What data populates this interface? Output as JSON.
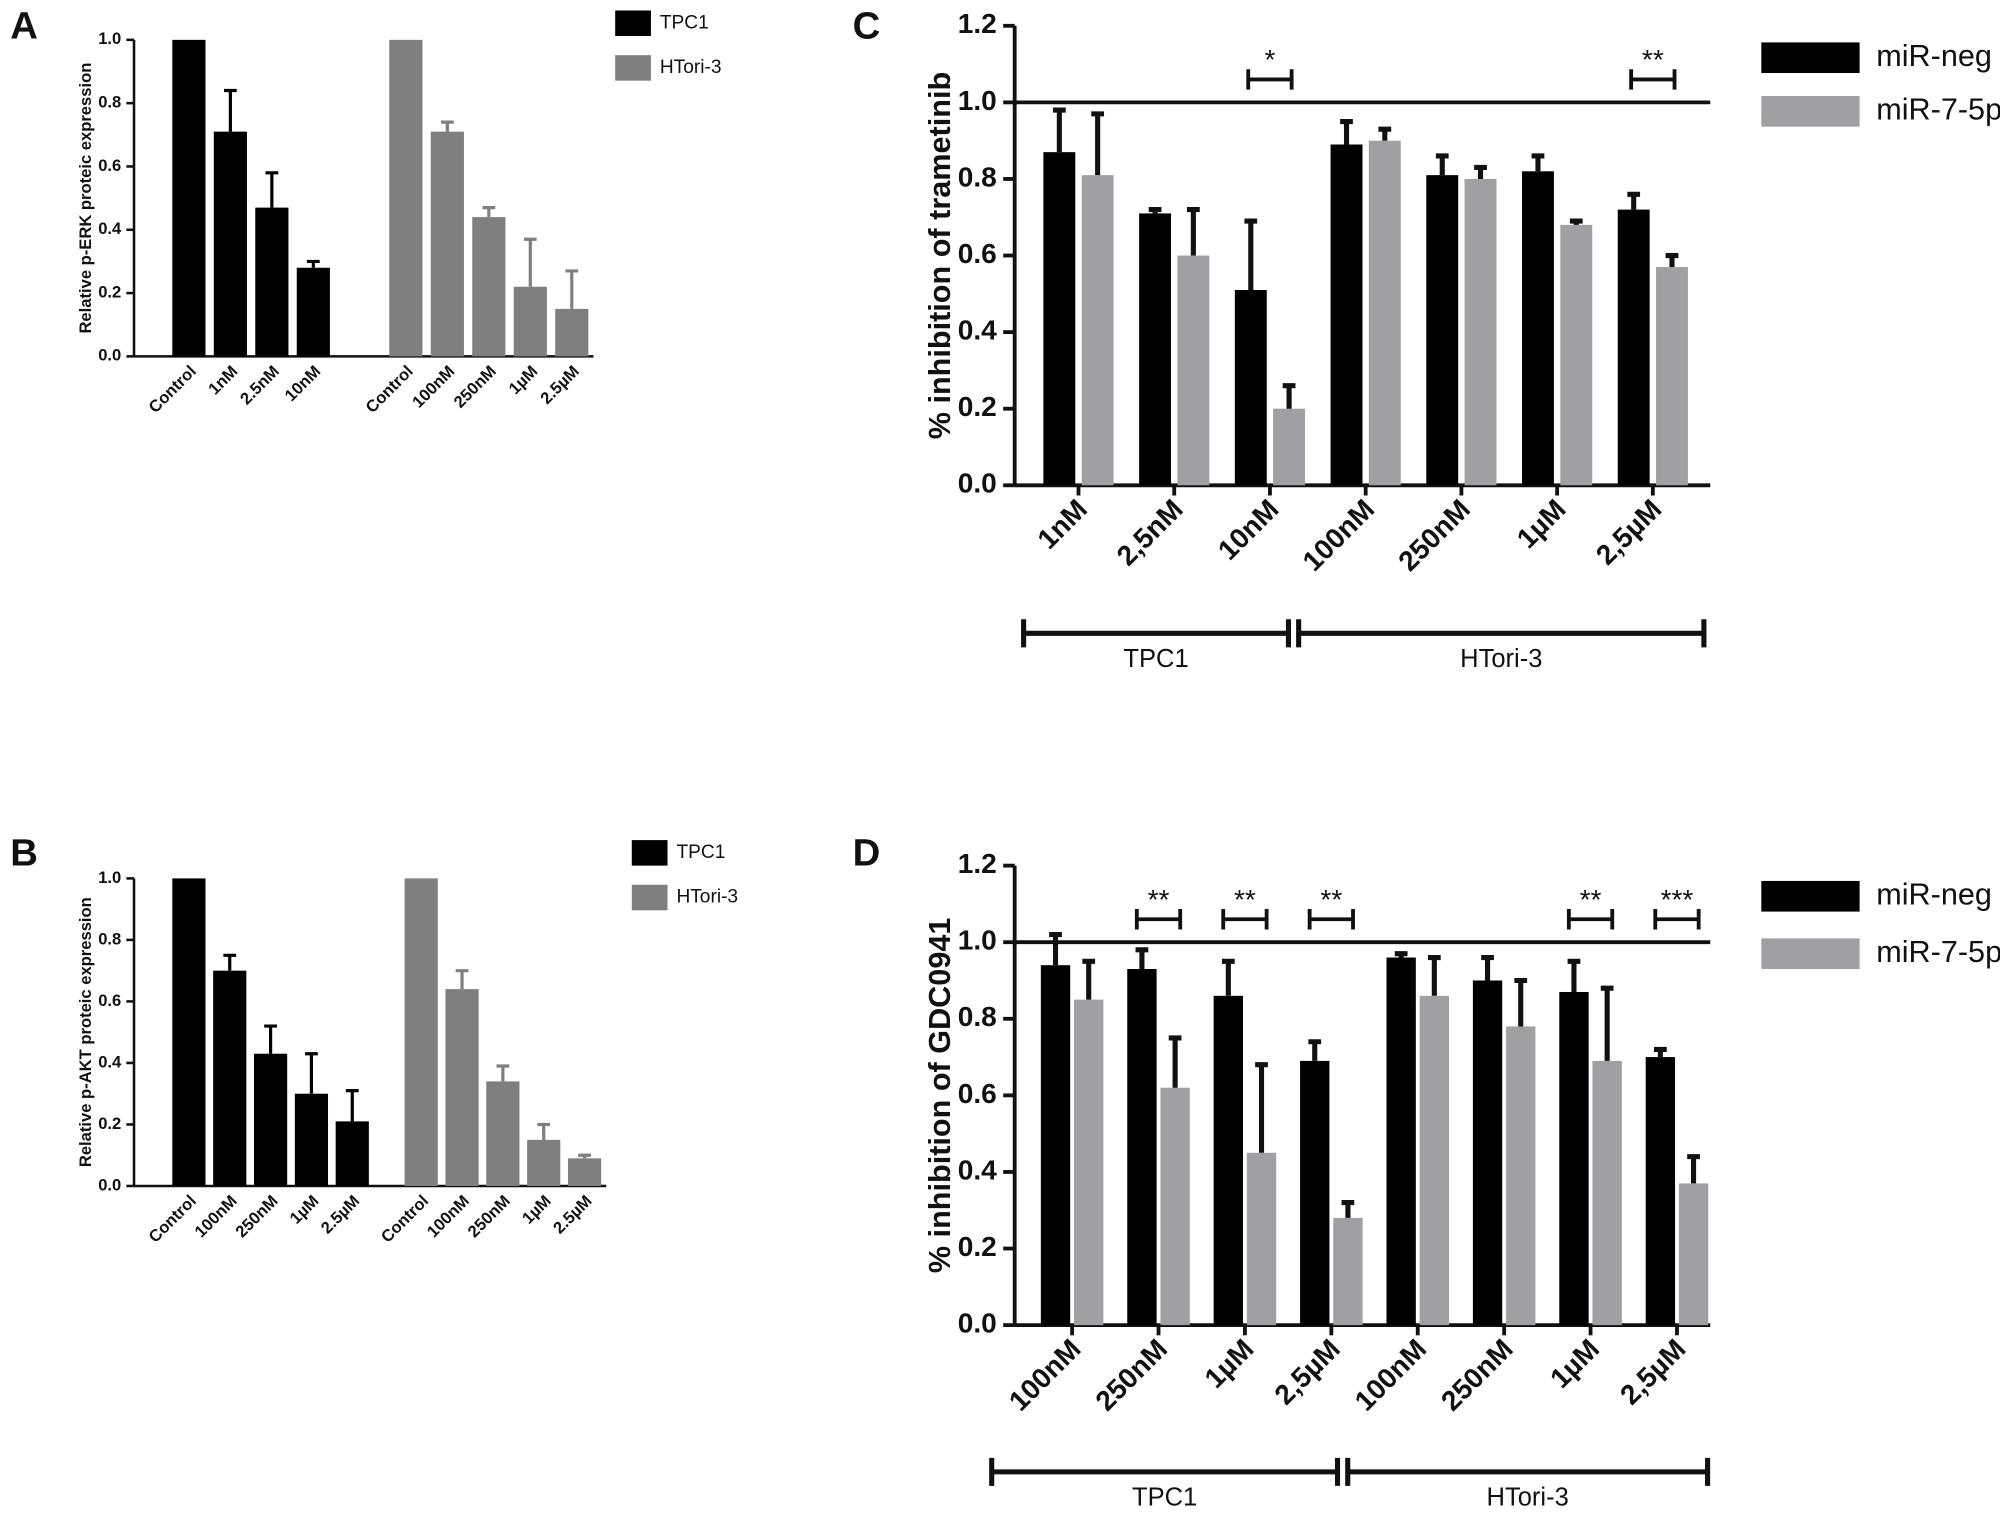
{
  "chart_data": [
    {
      "panel": "A",
      "type": "bar",
      "ylabel": "Relative p-ERK proteic expression",
      "ylim": [
        0,
        1
      ],
      "yticks": [
        {
          "value": 0,
          "label": "0.0"
        },
        0.2,
        0.4,
        0.6,
        0.8,
        {
          "value": 1,
          "label": "1.0"
        }
      ],
      "series": [
        {
          "name": "TPC1",
          "color": "#000000",
          "categories": [
            "Control",
            "1nM",
            "2.5nM",
            "10nM"
          ],
          "values": [
            1,
            0.71,
            0.47,
            0.28
          ],
          "errors": [
            null,
            0.13,
            0.11,
            0.02
          ]
        },
        {
          "name": "HTori-3",
          "color": "#7f7f7f",
          "categories": [
            "Control",
            "100nM",
            "250nM",
            "1µM",
            "2.5µM"
          ],
          "values": [
            1,
            0.71,
            0.44,
            0.22,
            0.15
          ],
          "errors": [
            null,
            0.03,
            0.03,
            0.15,
            0.12
          ]
        }
      ]
    },
    {
      "panel": "B",
      "type": "bar",
      "ylabel": "Relative p-AKT proteic expression",
      "ylim": [
        0,
        1
      ],
      "yticks": [
        {
          "value": 0,
          "label": "0.0"
        },
        0.2,
        0.4,
        0.6,
        0.8,
        {
          "value": 1,
          "label": "1.0"
        }
      ],
      "series": [
        {
          "name": "TPC1",
          "color": "#000000",
          "categories": [
            "Control",
            "100nM",
            "250nM",
            "1µM",
            "2.5µM"
          ],
          "values": [
            1,
            0.7,
            0.43,
            0.3,
            0.21
          ],
          "errors": [
            null,
            0.05,
            0.09,
            0.13,
            0.1
          ]
        },
        {
          "name": "HTori-3",
          "color": "#7f7f7f",
          "categories": [
            "Control",
            "100nM",
            "250nM",
            "1µM",
            "2.5µM"
          ],
          "values": [
            1,
            0.64,
            0.34,
            0.15,
            0.09
          ],
          "errors": [
            null,
            0.06,
            0.05,
            0.05,
            0.01
          ]
        }
      ]
    },
    {
      "panel": "C",
      "type": "grouped",
      "ylabel": "% inhibition of trametinib",
      "ylim": [
        0,
        1.2
      ],
      "yticks": [
        {
          "value": 0,
          "label": "0.0"
        },
        0.2,
        0.4,
        0.6,
        0.8,
        {
          "value": 1,
          "label": "1.0"
        },
        1.2
      ],
      "reference_line": 1,
      "groups": [
        {
          "label": "TPC1",
          "categories": [
            "1nM",
            "2,5nM",
            "10nM"
          ]
        },
        {
          "label": "HTori-3",
          "categories": [
            "100nM",
            "250nM",
            "1µM",
            "2,5µM"
          ]
        }
      ],
      "series": [
        {
          "name": "miR-neg",
          "color": "#000000",
          "values": [
            0.87,
            0.71,
            0.51,
            0.89,
            0.81,
            0.82,
            0.72
          ],
          "errors": [
            0.11,
            0.01,
            0.18,
            0.06,
            0.05,
            0.04,
            0.04
          ]
        },
        {
          "name": "miR-7-5p",
          "color": "#a0a0a4",
          "values": [
            0.81,
            0.6,
            0.2,
            0.9,
            0.8,
            0.68,
            0.57
          ],
          "errors": [
            0.16,
            0.12,
            0.06,
            0.03,
            0.03,
            0.01,
            0.03
          ]
        }
      ],
      "significance": [
        null,
        null,
        "*",
        null,
        null,
        null,
        "**"
      ]
    },
    {
      "panel": "D",
      "type": "grouped",
      "ylabel": "% inhibition of GDC0941",
      "ylim": [
        0,
        1.2
      ],
      "yticks": [
        {
          "value": 0,
          "label": "0.0"
        },
        0.2,
        0.4,
        0.6,
        0.8,
        {
          "value": 1,
          "label": "1.0"
        },
        1.2
      ],
      "reference_line": 1,
      "groups": [
        {
          "label": "TPC1",
          "categories": [
            "100nM",
            "250nM",
            "1µM",
            "2,5µM"
          ]
        },
        {
          "label": "HTori-3",
          "categories": [
            "100nM",
            "250nM",
            "1µM",
            "2,5µM"
          ]
        }
      ],
      "series": [
        {
          "name": "miR-neg",
          "color": "#000000",
          "values": [
            0.94,
            0.93,
            0.86,
            0.69,
            0.96,
            0.9,
            0.87,
            0.7
          ],
          "errors": [
            0.08,
            0.05,
            0.09,
            0.05,
            0.01,
            0.06,
            0.08,
            0.02
          ]
        },
        {
          "name": "miR-7-5p",
          "color": "#a0a0a4",
          "values": [
            0.85,
            0.62,
            0.45,
            0.28,
            0.86,
            0.78,
            0.69,
            0.37
          ],
          "errors": [
            0.1,
            0.13,
            0.23,
            0.04,
            0.1,
            0.12,
            0.19,
            0.07
          ]
        }
      ],
      "significance": [
        null,
        "**",
        "**",
        "**",
        null,
        null,
        "**",
        "***"
      ]
    }
  ]
}
